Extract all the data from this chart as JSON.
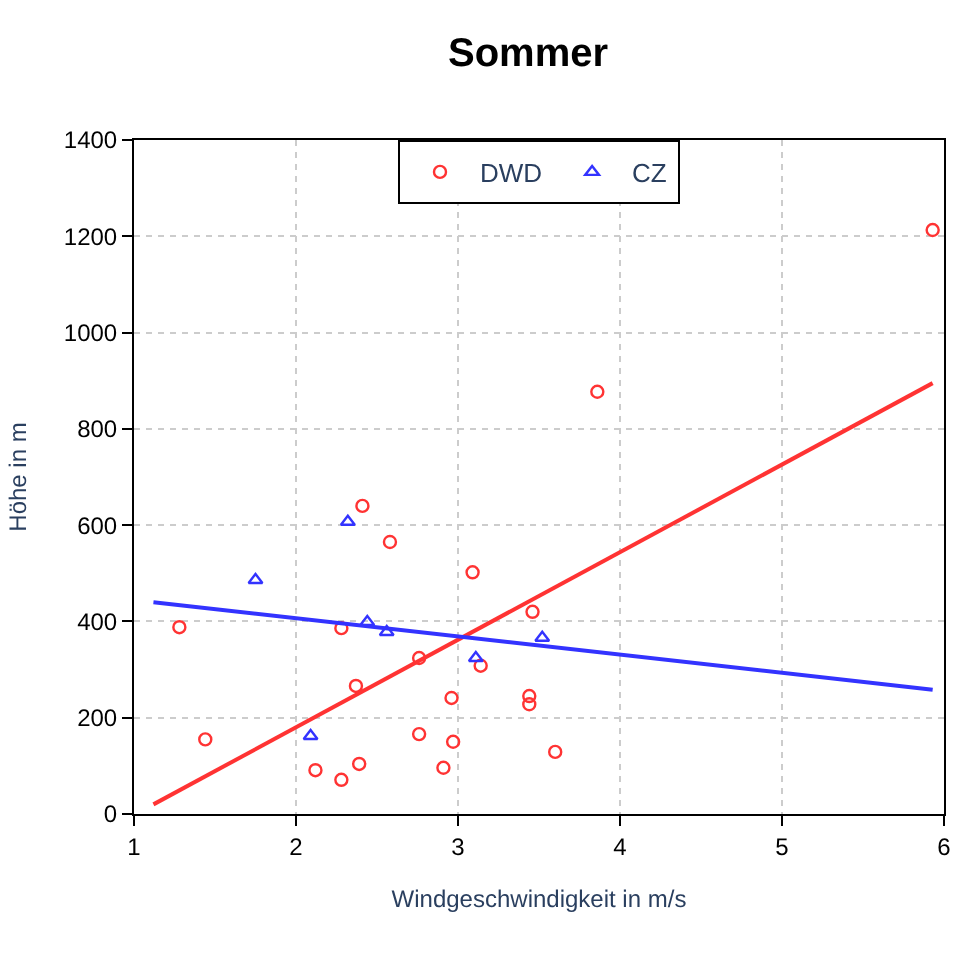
{
  "chart_data": {
    "type": "scatter",
    "title": "Sommer",
    "xlabel": "Windgeschwindigkeit in m/s",
    "ylabel": "Höhe in m",
    "xlim": [
      1,
      6
    ],
    "xticks": [
      1,
      2,
      3,
      4,
      5,
      6
    ],
    "ylim": [
      0,
      1400
    ],
    "yticks": [
      0,
      200,
      400,
      600,
      800,
      1000,
      1200,
      1400
    ],
    "grid": true,
    "legend": "top",
    "series": [
      {
        "name": "DWD",
        "color": "#ff3333",
        "marker": "circle",
        "x": [
          1.28,
          1.44,
          2.12,
          2.28,
          2.39,
          2.28,
          2.41,
          2.58,
          2.37,
          2.76,
          2.76,
          2.96,
          2.97,
          2.91,
          3.09,
          3.14,
          3.46,
          3.44,
          3.44,
          3.6,
          3.86,
          5.93
        ],
        "values": [
          388,
          155,
          91,
          71,
          104,
          386,
          640,
          565,
          266,
          324,
          166,
          241,
          150,
          96,
          502,
          308,
          420,
          245,
          228,
          129,
          877,
          1213
        ]
      },
      {
        "name": "CZ",
        "color": "#3333ff",
        "marker": "triangle",
        "x": [
          1.75,
          2.32,
          2.44,
          2.56,
          2.09,
          3.11,
          3.52
        ],
        "values": [
          486,
          607,
          399,
          378,
          162,
          324,
          366
        ]
      },
      {
        "type": "line",
        "color": "#ff3333",
        "marker": "none",
        "x": [
          1.12,
          5.93
        ],
        "values": [
          20,
          895
        ]
      },
      {
        "type": "line",
        "color": "#3333ff",
        "marker": "none",
        "x": [
          1.12,
          5.93
        ],
        "values": [
          440,
          258
        ]
      }
    ]
  }
}
